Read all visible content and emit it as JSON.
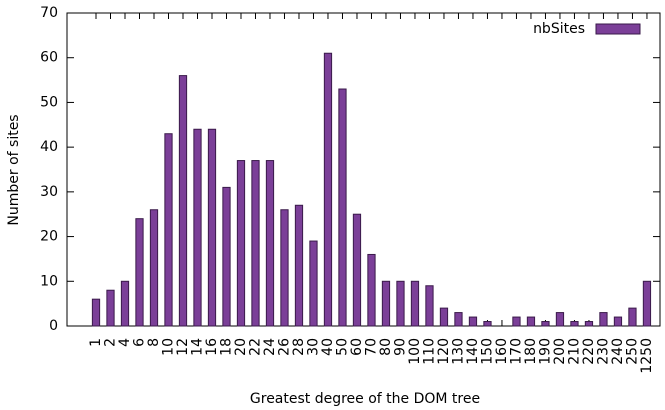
{
  "chart_data": {
    "type": "bar",
    "x_label": "Greatest degree of the DOM tree",
    "y_label": "Number of sites",
    "categories": [
      "1",
      "2",
      "4",
      "6",
      "8",
      "10",
      "12",
      "14",
      "16",
      "18",
      "20",
      "22",
      "24",
      "26",
      "28",
      "30",
      "40",
      "50",
      "60",
      "70",
      "80",
      "90",
      "100",
      "110",
      "120",
      "130",
      "140",
      "150",
      "160",
      "170",
      "180",
      "190",
      "200",
      "210",
      "220",
      "230",
      "240",
      "250",
      "1250"
    ],
    "series": [
      {
        "name": "nbSites",
        "color": "#7b3f98",
        "values": [
          6,
          8,
          10,
          24,
          26,
          43,
          56,
          44,
          44,
          31,
          37,
          37,
          37,
          26,
          27,
          19,
          61,
          53,
          25,
          16,
          10,
          10,
          10,
          9,
          4,
          3,
          2,
          1,
          0,
          2,
          2,
          1,
          3,
          1,
          1,
          3,
          2,
          4,
          10
        ]
      }
    ],
    "ylim": [
      0,
      70
    ],
    "yticks": [
      0,
      10,
      20,
      30,
      40,
      50,
      60,
      70
    ],
    "legend": "top-right"
  }
}
